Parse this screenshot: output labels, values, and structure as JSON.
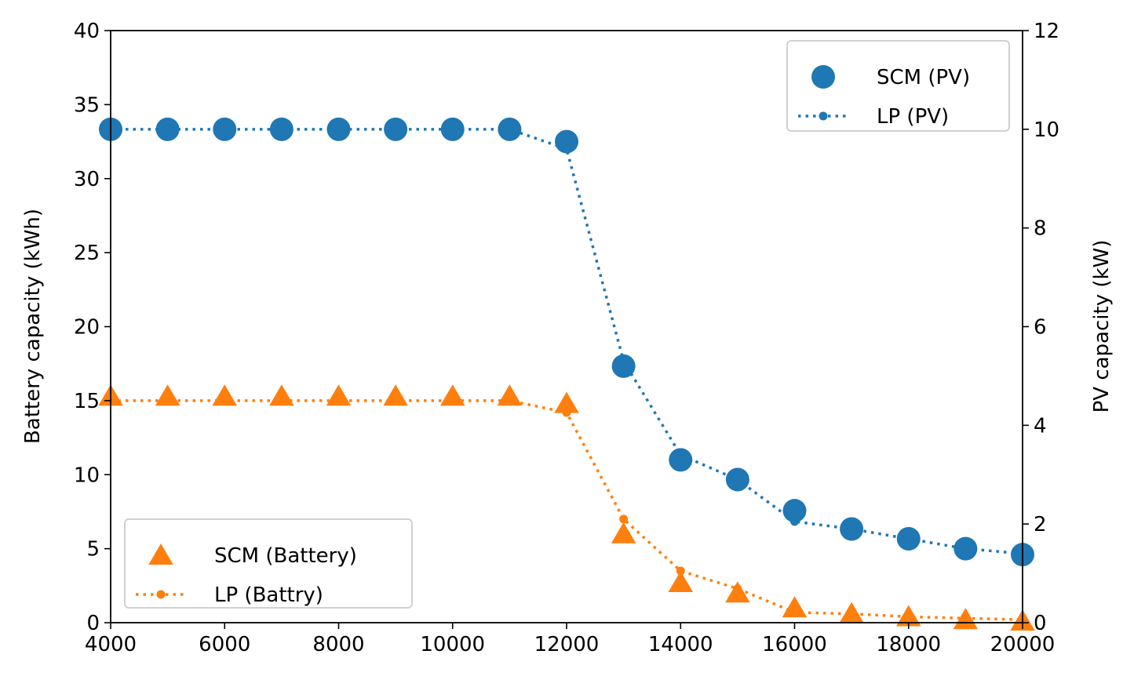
{
  "chart_data": {
    "type": "line",
    "x": [
      4000,
      5000,
      6000,
      7000,
      8000,
      9000,
      10000,
      11000,
      12000,
      13000,
      14000,
      15000,
      16000,
      17000,
      18000,
      19000,
      20000
    ],
    "xlim": [
      4000,
      20000
    ],
    "x_ticks": [
      "4000",
      "6000",
      "8000",
      "10000",
      "12000",
      "14000",
      "16000",
      "18000",
      "20000"
    ],
    "x_tick_values": [
      4000,
      6000,
      8000,
      10000,
      12000,
      14000,
      16000,
      18000,
      20000
    ],
    "left_axis": {
      "label": "Battery capacity (kWh)",
      "ylim": [
        0,
        40
      ],
      "ticks": [
        "0",
        "5",
        "10",
        "15",
        "20",
        "25",
        "30",
        "35",
        "40"
      ],
      "tick_values": [
        0,
        5,
        10,
        15,
        20,
        25,
        30,
        35,
        40
      ]
    },
    "right_axis": {
      "label": "PV capacity (kW)",
      "ylim": [
        0,
        12
      ],
      "ticks": [
        "0",
        "2",
        "4",
        "6",
        "8",
        "10",
        "12"
      ],
      "tick_values": [
        0,
        2,
        4,
        6,
        8,
        10,
        12
      ]
    },
    "series": [
      {
        "name": "SCM (PV)",
        "axis": "right",
        "style": "markers",
        "marker": "circle",
        "color": "#1f77b4",
        "values": [
          10.0,
          10.0,
          10.0,
          10.0,
          10.0,
          10.0,
          10.0,
          10.0,
          9.75,
          5.2,
          3.3,
          2.9,
          2.27,
          1.9,
          1.7,
          1.5,
          1.38
        ]
      },
      {
        "name": "LP (PV)",
        "axis": "right",
        "style": "dotted-line",
        "marker": "small-circle",
        "color": "#1f77b4",
        "values": [
          10.0,
          10.0,
          10.0,
          10.0,
          10.0,
          10.0,
          10.0,
          10.0,
          9.6,
          5.3,
          3.4,
          2.9,
          2.05,
          1.9,
          1.7,
          1.5,
          1.4
        ]
      },
      {
        "name": "SCM (Battery)",
        "axis": "left",
        "style": "markers",
        "marker": "triangle",
        "color": "#ff7f0e",
        "values": [
          15.3,
          15.3,
          15.3,
          15.3,
          15.3,
          15.3,
          15.3,
          15.3,
          14.8,
          6.0,
          2.7,
          2.0,
          1.0,
          0.6,
          0.4,
          0.2,
          0.1
        ]
      },
      {
        "name": "LP (Battry)",
        "axis": "left",
        "style": "dotted-line",
        "marker": "small-circle",
        "color": "#ff7f0e",
        "values": [
          15.0,
          15.0,
          15.0,
          15.0,
          15.0,
          15.0,
          15.0,
          15.0,
          14.2,
          7.0,
          3.5,
          2.3,
          0.7,
          0.6,
          0.4,
          0.3,
          0.2
        ]
      }
    ],
    "legends": [
      {
        "position": "top-right",
        "entries": [
          "SCM (PV)",
          "LP (PV)"
        ]
      },
      {
        "position": "bottom-left",
        "entries": [
          "SCM (Battery)",
          "LP (Battry)"
        ]
      }
    ]
  }
}
